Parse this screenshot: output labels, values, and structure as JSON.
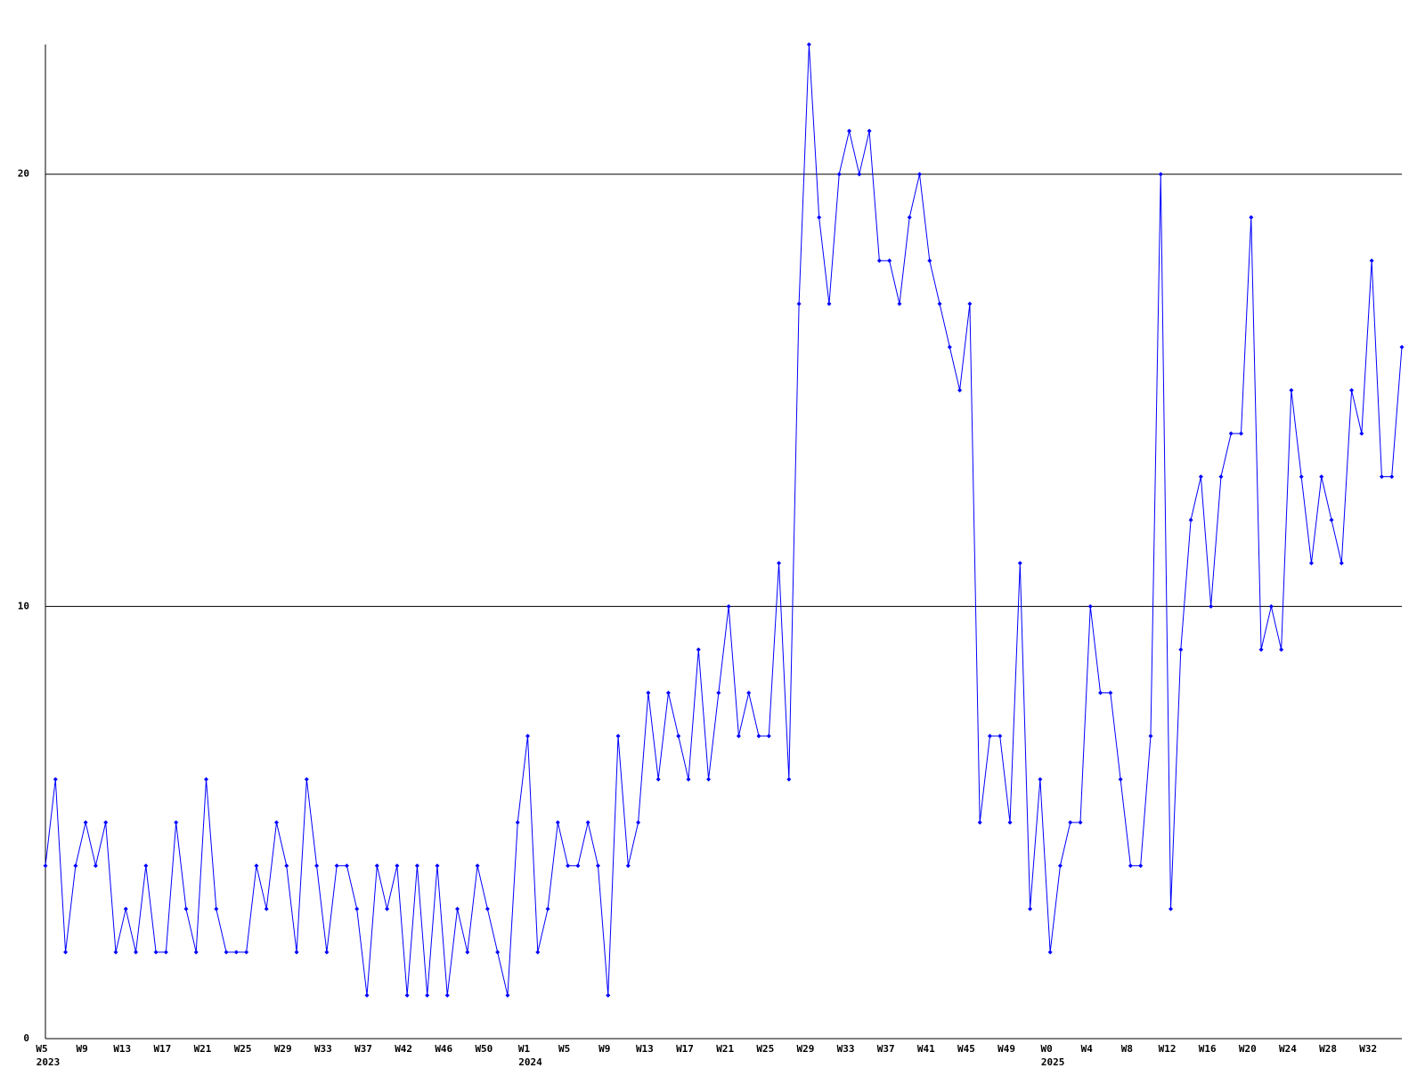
{
  "chart_data": {
    "type": "line",
    "categories": [
      "W5",
      null,
      null,
      null,
      "W9",
      null,
      null,
      null,
      "W13",
      null,
      null,
      null,
      "W17",
      null,
      null,
      null,
      "W21",
      null,
      null,
      null,
      "W25",
      null,
      null,
      null,
      "W29",
      null,
      null,
      null,
      "W33",
      null,
      null,
      null,
      "W37",
      null,
      null,
      null,
      "W42",
      null,
      null,
      null,
      "W46",
      null,
      null,
      null,
      "W50",
      null,
      null,
      null,
      "W1",
      null,
      null,
      null,
      "W5",
      null,
      null,
      null,
      "W9",
      null,
      null,
      null,
      "W13",
      null,
      null,
      null,
      "W17",
      null,
      null,
      null,
      "W21",
      null,
      null,
      null,
      "W25",
      null,
      null,
      null,
      "W29",
      null,
      null,
      null,
      "W33",
      null,
      null,
      null,
      "W37",
      null,
      null,
      null,
      "W41",
      null,
      null,
      null,
      "W45",
      null,
      null,
      null,
      "W49",
      null,
      null,
      null,
      "W0",
      null,
      null,
      null,
      "W4",
      null,
      null,
      null,
      "W8",
      null,
      null,
      null,
      "W12",
      null,
      null,
      null,
      "W16",
      null,
      null,
      null,
      "W20",
      null,
      null,
      null,
      "W24",
      null,
      null,
      null,
      "W28",
      null,
      null,
      null,
      "W32",
      null,
      null,
      null
    ],
    "years": [
      "2023",
      null,
      null,
      null,
      null,
      null,
      null,
      null,
      null,
      null,
      null,
      null,
      null,
      null,
      null,
      null,
      null,
      null,
      null,
      null,
      null,
      null,
      null,
      null,
      null,
      null,
      null,
      null,
      null,
      null,
      null,
      null,
      null,
      null,
      null,
      null,
      null,
      null,
      null,
      null,
      null,
      null,
      null,
      null,
      null,
      null,
      null,
      null,
      "2024",
      null,
      null,
      null,
      null,
      null,
      null,
      null,
      null,
      null,
      null,
      null,
      null,
      null,
      null,
      null,
      null,
      null,
      null,
      null,
      null,
      null,
      null,
      null,
      null,
      null,
      null,
      null,
      null,
      null,
      null,
      null,
      null,
      null,
      null,
      null,
      null,
      null,
      null,
      null,
      null,
      null,
      null,
      null,
      null,
      null,
      null,
      null,
      null,
      null,
      null,
      null,
      "2025",
      null,
      null,
      null,
      null,
      null,
      null,
      null,
      null,
      null,
      null,
      null,
      null,
      null,
      null,
      null,
      null,
      null,
      null,
      null,
      null,
      null,
      null,
      null,
      null,
      null,
      null,
      null,
      null,
      null,
      null,
      null,
      null,
      null,
      null,
      null
    ],
    "series": [
      {
        "color": "#0000ff",
        "values": [
          4,
          6,
          2,
          4,
          5,
          4,
          5,
          2,
          3,
          2,
          4,
          2,
          2,
          5,
          3,
          2,
          6,
          3,
          2,
          2,
          2,
          4,
          3,
          5,
          4,
          2,
          6,
          4,
          2,
          4,
          4,
          3,
          1,
          4,
          3,
          4,
          1,
          4,
          1,
          4,
          1,
          3,
          2,
          4,
          3,
          2,
          1,
          5,
          7,
          2,
          3,
          5,
          4,
          4,
          5,
          4,
          1,
          7,
          4,
          5,
          8,
          6,
          8,
          7,
          6,
          9,
          6,
          8,
          10,
          7,
          8,
          7,
          7,
          11,
          6,
          17,
          23,
          19,
          17,
          20,
          21,
          20,
          21,
          18,
          18,
          17,
          19,
          20,
          18,
          17,
          16,
          15,
          17,
          5,
          7,
          7,
          5,
          11,
          3,
          6,
          2,
          4,
          5,
          5,
          10,
          8,
          8,
          6,
          4,
          4,
          7,
          20,
          3,
          9,
          12,
          13,
          10,
          13,
          14,
          14,
          19,
          9,
          10,
          9,
          15,
          13,
          11,
          13,
          12,
          11,
          15,
          14,
          18,
          13,
          13,
          16
        ]
      }
    ],
    "ylim": [
      0,
      23
    ],
    "yticks": [
      0,
      10,
      20
    ],
    "grid": true
  }
}
